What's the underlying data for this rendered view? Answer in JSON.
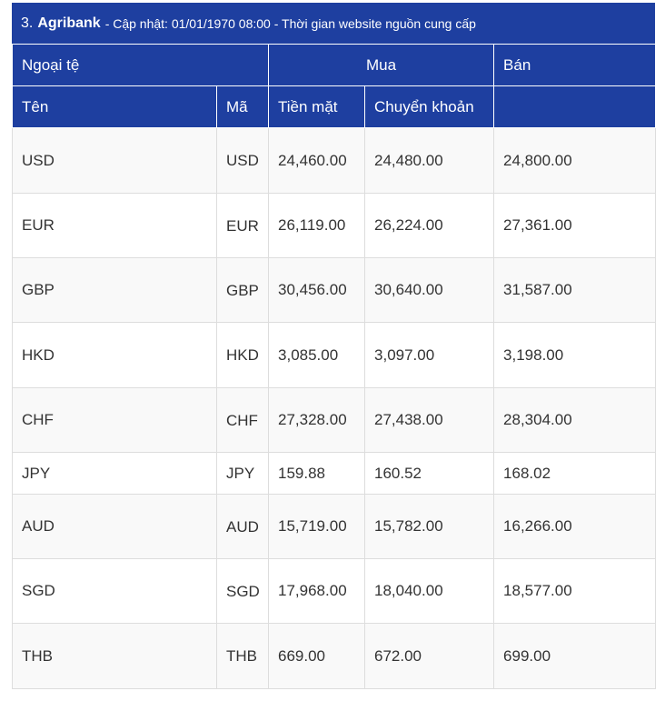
{
  "header": {
    "number": "3.",
    "bank": "Agribank",
    "subtitle": "- Cập nhật: 01/01/1970 08:00 - Thời gian website nguồn cung cấp"
  },
  "columns": {
    "foreign_currency": "Ngoại tệ",
    "buy": "Mua",
    "sell": "Bán",
    "name": "Tên",
    "code": "Mã",
    "cash": "Tiền mặt",
    "transfer": "Chuyển khoản"
  },
  "rows": [
    {
      "name": "USD",
      "code": "USD",
      "cash": "24,460.00",
      "transfer": "24,480.00",
      "sell": "24,800.00"
    },
    {
      "name": "EUR",
      "code": "EUR",
      "cash": "26,119.00",
      "transfer": "26,224.00",
      "sell": "27,361.00"
    },
    {
      "name": "GBP",
      "code": "GBP",
      "cash": "30,456.00",
      "transfer": "30,640.00",
      "sell": "31,587.00"
    },
    {
      "name": "HKD",
      "code": "HKD",
      "cash": "3,085.00",
      "transfer": "3,097.00",
      "sell": "3,198.00"
    },
    {
      "name": "CHF",
      "code": "CHF",
      "cash": "27,328.00",
      "transfer": "27,438.00",
      "sell": "28,304.00"
    },
    {
      "name": "JPY",
      "code": "JPY",
      "cash": "159.88",
      "transfer": "160.52",
      "sell": "168.02"
    },
    {
      "name": "AUD",
      "code": "AUD",
      "cash": "15,719.00",
      "transfer": "15,782.00",
      "sell": "16,266.00"
    },
    {
      "name": "SGD",
      "code": "SGD",
      "cash": "17,968.00",
      "transfer": "18,040.00",
      "sell": "18,577.00"
    },
    {
      "name": "THB",
      "code": "THB",
      "cash": "669.00",
      "transfer": "672.00",
      "sell": "699.00"
    }
  ],
  "colors": {
    "header_bg": "#1e3fa0",
    "header_text": "#ffffff",
    "stripe": "#f9f9f9",
    "border": "#dddddd"
  }
}
